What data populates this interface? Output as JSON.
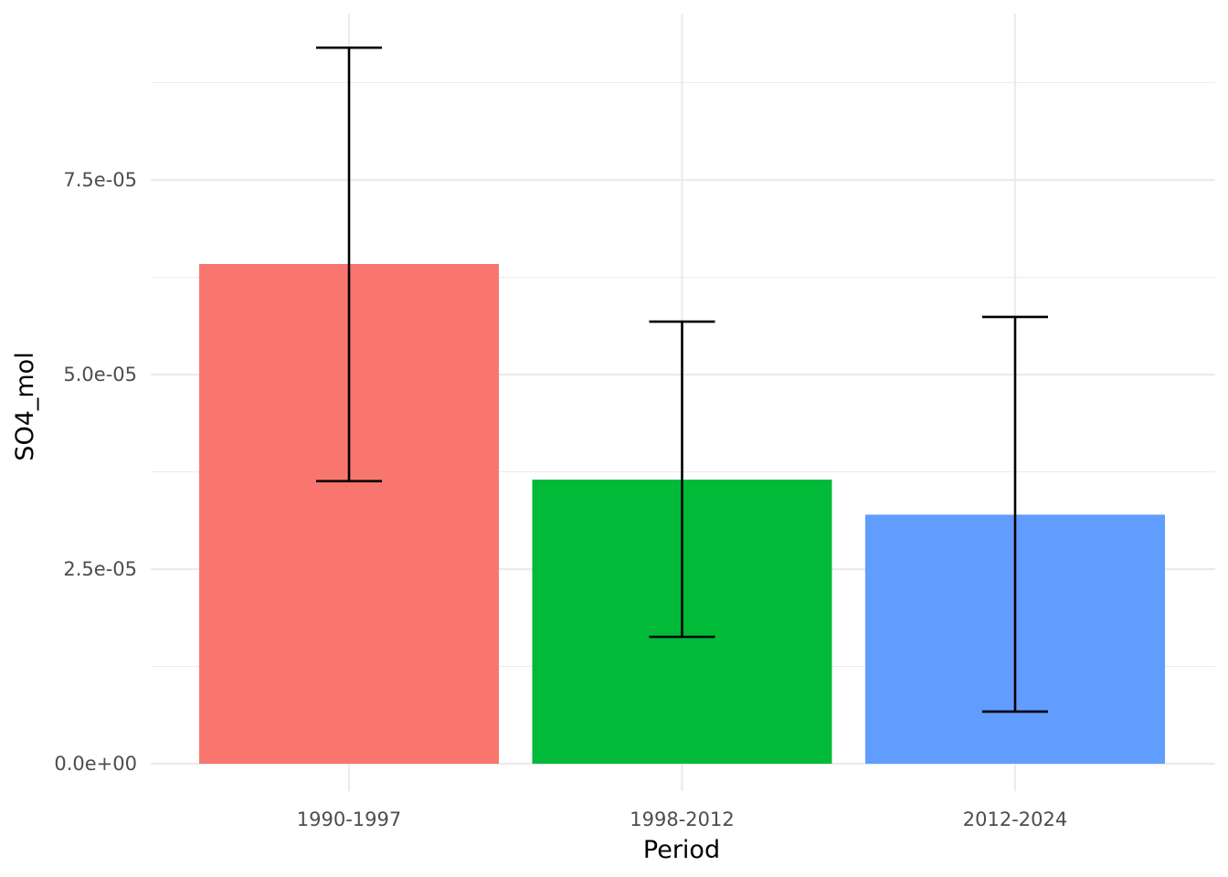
{
  "chart_data": {
    "type": "bar",
    "title": "",
    "xlabel": "Period",
    "ylabel": "SO4_mol",
    "categories": [
      "1990-1997",
      "1998-2012",
      "2012-2024"
    ],
    "values": [
      6.42e-05,
      3.65e-05,
      3.2e-05
    ],
    "error_bars": {
      "lower": [
        3.63e-05,
        1.63e-05,
        6.7e-06
      ],
      "upper": [
        9.2e-05,
        5.68e-05,
        5.74e-05
      ]
    },
    "colors": [
      "#F8766D",
      "#00BA38",
      "#619CFF"
    ],
    "ylim": [
      -3.5e-06,
      9.65e-05
    ],
    "yticks": [
      0,
      2.5e-05,
      5e-05,
      7.5e-05
    ],
    "ytick_labels": [
      "0.0e+00",
      "2.5e-05",
      "5.0e-05",
      "7.5e-05"
    ],
    "grid": true,
    "legend": "none"
  }
}
